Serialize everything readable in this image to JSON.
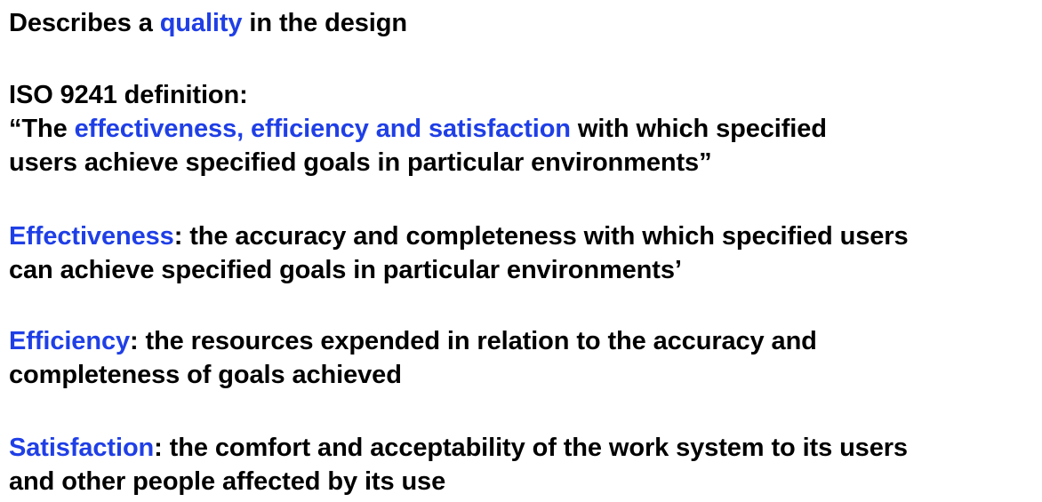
{
  "accent_color": "#1f3fe6",
  "intro": {
    "before": "Describes a ",
    "highlight": "quality",
    "after": " in the design"
  },
  "iso": {
    "heading": "ISO 9241 definition:",
    "quote_open": "“The ",
    "highlight": "effectiveness, efficiency and satisfaction",
    "after": " with which specified",
    "line2": "users achieve specified goals in particular environments”"
  },
  "effectiveness": {
    "term": "Effectiveness",
    "line1_rest": ": the accuracy and completeness with which specified users",
    "line2": "can achieve specified goals in particular environments’"
  },
  "efficiency": {
    "term": "Efficiency",
    "line1_rest": ": the resources expended in relation to the accuracy and",
    "line2": "completeness of goals achieved"
  },
  "satisfaction": {
    "term": "Satisfaction",
    "line1_rest": ": the comfort and acceptability of the work system to its users",
    "line2": "and other people affected by its use"
  }
}
